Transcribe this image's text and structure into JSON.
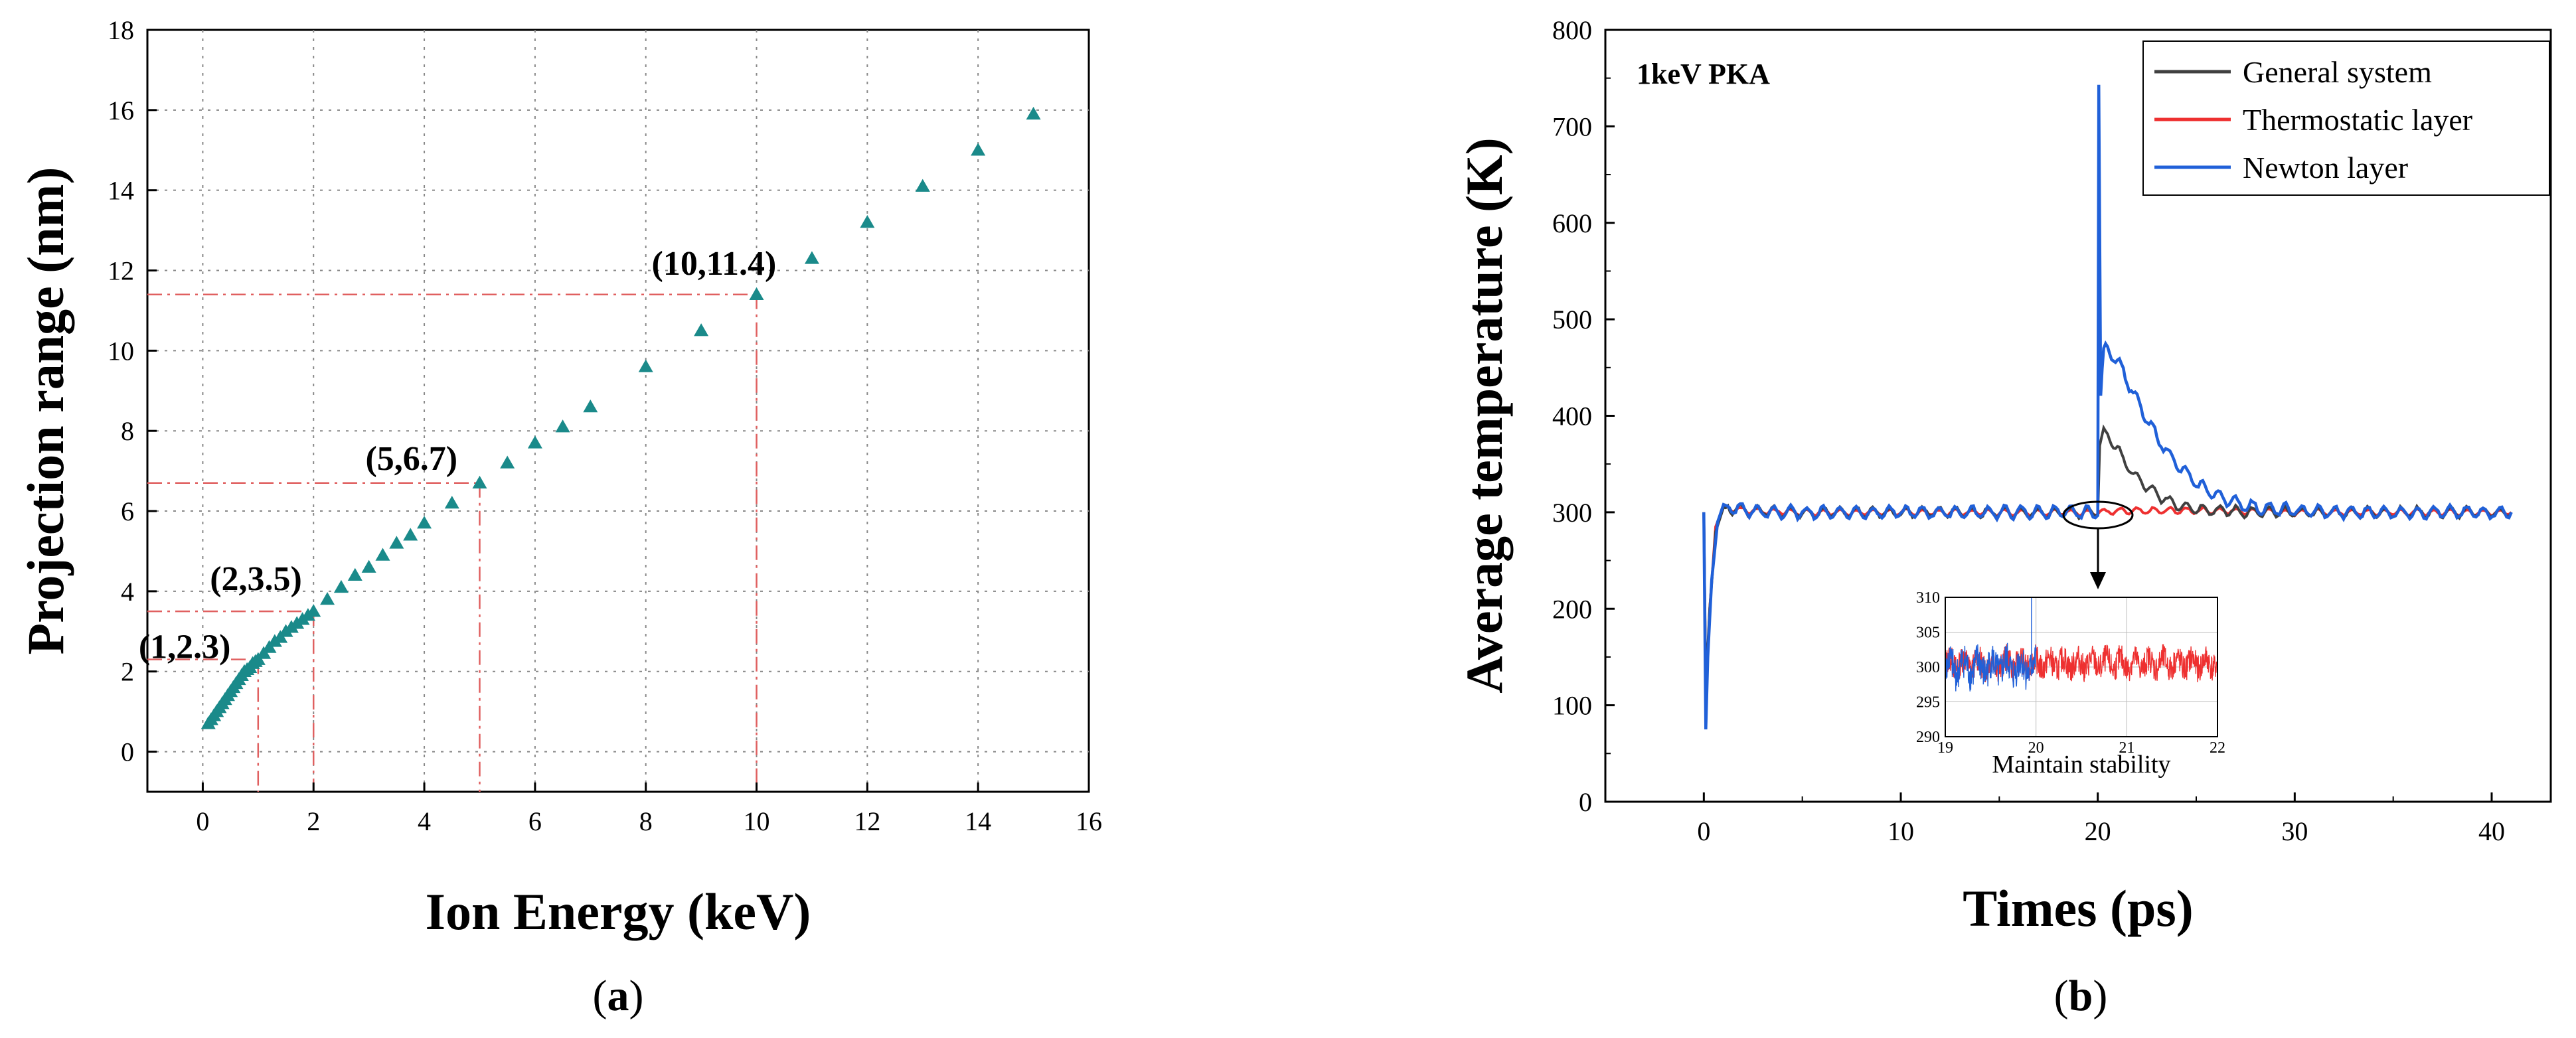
{
  "chart_data": [
    {
      "panel": "(a)",
      "type": "scatter",
      "title": "",
      "xlabel": "Ion Energy (keV)",
      "ylabel": "Projection range (nm)",
      "xlim": [
        -1,
        16
      ],
      "ylim": [
        -1,
        18
      ],
      "xticks": [
        0,
        2,
        4,
        6,
        8,
        10,
        12,
        14,
        16
      ],
      "yticks": [
        0,
        2,
        4,
        6,
        8,
        10,
        12,
        14,
        16,
        18
      ],
      "grid": true,
      "marker": "triangle",
      "color": "#1a8a8a",
      "guide_color": "#e06060",
      "series": [
        {
          "x": [
            0.1,
            0.15,
            0.2,
            0.25,
            0.3,
            0.35,
            0.4,
            0.45,
            0.5,
            0.55,
            0.6,
            0.65,
            0.7,
            0.75,
            0.8,
            0.85,
            0.9,
            0.95,
            1.0,
            1.1,
            1.2,
            1.3,
            1.4,
            1.5,
            1.6,
            1.7,
            1.8,
            1.9,
            2.0,
            2.25,
            2.5,
            2.75,
            3.0,
            3.25,
            3.5,
            3.75,
            4.0,
            4.5,
            5.0,
            5.5,
            6.0,
            6.5,
            7.0,
            8.0,
            9.0,
            10.0,
            11.0,
            12.0,
            13.0,
            14.0,
            15.0
          ],
          "y": [
            0.7,
            0.8,
            0.9,
            1.0,
            1.1,
            1.2,
            1.3,
            1.4,
            1.5,
            1.6,
            1.7,
            1.8,
            1.9,
            2.0,
            2.05,
            2.1,
            2.2,
            2.25,
            2.3,
            2.45,
            2.6,
            2.75,
            2.85,
            3.0,
            3.1,
            3.2,
            3.3,
            3.4,
            3.5,
            3.8,
            4.1,
            4.4,
            4.6,
            4.9,
            5.2,
            5.4,
            5.7,
            6.2,
            6.7,
            7.2,
            7.7,
            8.1,
            8.6,
            9.6,
            10.5,
            11.4,
            12.3,
            13.2,
            14.1,
            15.0,
            15.9
          ]
        }
      ],
      "annotations": [
        {
          "text": "(1,2.3)",
          "x": 1,
          "y": 2.3
        },
        {
          "text": "(2,3.5)",
          "x": 2,
          "y": 3.5
        },
        {
          "text": "(5,6.7)",
          "x": 5,
          "y": 6.7
        },
        {
          "text": "(10,11.4)",
          "x": 10,
          "y": 11.4
        }
      ]
    },
    {
      "panel": "(b)",
      "type": "line",
      "title": "1keV PKA",
      "xlabel": "Times (ps)",
      "ylabel": "Average temperature (K)",
      "xlim": [
        -5,
        43
      ],
      "ylim": [
        0,
        800
      ],
      "xticks": [
        0,
        10,
        20,
        30,
        40
      ],
      "yticks": [
        0,
        100,
        200,
        300,
        400,
        500,
        600,
        700,
        800
      ],
      "legend_position": "top-right",
      "series": [
        {
          "name": "General system",
          "color": "#404040",
          "x": [
            0,
            0.1,
            0.3,
            0.6,
            1.0,
            2,
            5,
            10,
            15,
            20,
            20.1,
            20.3,
            20.6,
            21,
            21.5,
            22,
            23,
            24,
            25,
            26,
            27,
            28,
            30,
            35,
            41
          ],
          "y": [
            300,
            120,
            200,
            280,
            305,
            302,
            300,
            300,
            300,
            300,
            370,
            382,
            378,
            365,
            348,
            335,
            318,
            308,
            304,
            302,
            301,
            300,
            300,
            300,
            300
          ]
        },
        {
          "name": "Thermostatic layer",
          "color": "#ee3030",
          "x": [
            0,
            0.1,
            0.3,
            0.6,
            1.0,
            2,
            5,
            10,
            15,
            20,
            21,
            25,
            30,
            35,
            41
          ],
          "y": [
            300,
            110,
            200,
            285,
            306,
            302,
            300,
            300,
            300,
            300,
            301,
            302,
            300,
            300,
            300
          ]
        },
        {
          "name": "Newton layer",
          "color": "#2060d8",
          "x": [
            0,
            0.1,
            0.2,
            0.4,
            0.7,
            1.0,
            1.5,
            3,
            5,
            10,
            15,
            20,
            20.05,
            20.15,
            20.3,
            20.5,
            20.8,
            21.2,
            21.6,
            22,
            22.5,
            23,
            24,
            25,
            26,
            27,
            28,
            29,
            30,
            32,
            35,
            41
          ],
          "y": [
            300,
            75,
            150,
            230,
            290,
            308,
            304,
            300,
            300,
            300,
            300,
            300,
            745,
            420,
            465,
            472,
            462,
            450,
            432,
            415,
            396,
            378,
            350,
            330,
            318,
            310,
            305,
            303,
            302,
            300,
            300,
            300
          ]
        }
      ],
      "inset": {
        "xlabel": "Maintain stability",
        "xlim": [
          19,
          22
        ],
        "ylim": [
          290,
          310
        ],
        "xticks": [
          19,
          20,
          21,
          22
        ],
        "yticks": [
          290,
          295,
          300,
          305,
          310
        ],
        "series": [
          {
            "name": "Newton layer",
            "color": "#2060d8",
            "x_range": [
              19,
              20
            ],
            "center": 300,
            "amplitude": 2.6
          },
          {
            "name": "Thermostatic layer",
            "color": "#ee3030",
            "x_range": [
              19,
              22
            ],
            "center": 300.5,
            "amplitude": 2.0
          }
        ]
      }
    }
  ],
  "captions": {
    "a": {
      "open": "(",
      "letter": "a",
      "close": ")"
    },
    "b": {
      "open": "(",
      "letter": "b",
      "close": ")"
    }
  }
}
